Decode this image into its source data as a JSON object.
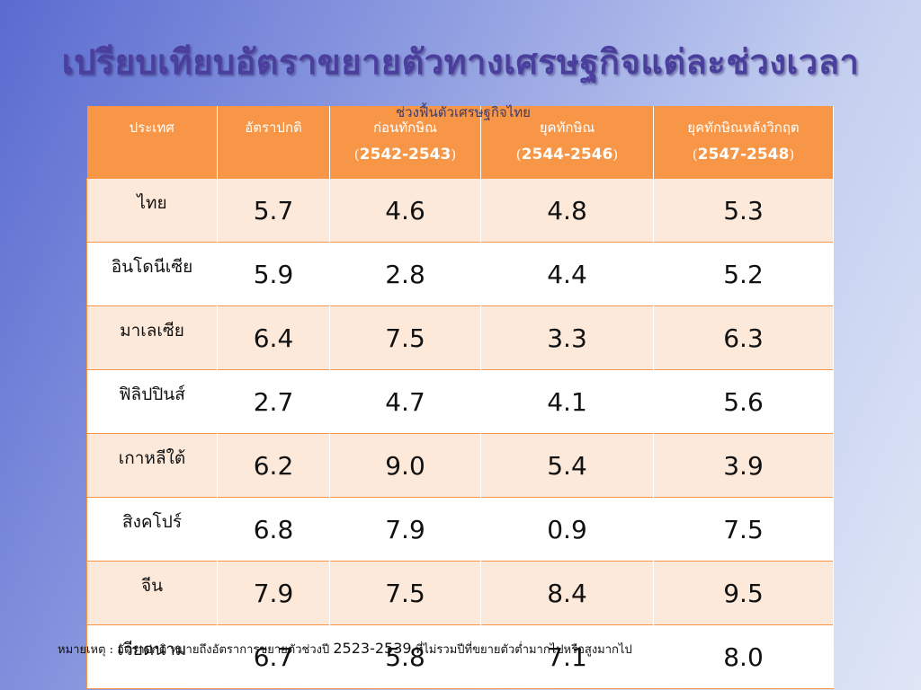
{
  "title": "เปรียบเทียบอัตราขยายตัวทางเศรษฐกิจแต่ละช่วงเวลา",
  "subtitle": "ช่วงฟื้นตัวเศรษฐกิจไทย",
  "table": {
    "headers": [
      {
        "label": "ประเทศ",
        "years": ""
      },
      {
        "label": "อัตราปกติ",
        "years": ""
      },
      {
        "label": "ก่อนทักษิณ",
        "years": "2542-2543"
      },
      {
        "label": "ยุคทักษิณ",
        "years": "2544-2546"
      },
      {
        "label": "ยุคทักษิณหลังวิกฤต",
        "years": "2547-2548"
      }
    ],
    "rows": [
      {
        "country": "ไทย",
        "values": [
          "5.7",
          "4.6",
          "4.8",
          "5.3"
        ]
      },
      {
        "country": "อินโดนีเซีย",
        "values": [
          "5.9",
          "2.8",
          "4.4",
          "5.2"
        ]
      },
      {
        "country": "มาเลเซีย",
        "values": [
          "6.4",
          "7.5",
          "3.3",
          "6.3"
        ]
      },
      {
        "country": "ฟิลิปปินส์",
        "values": [
          "2.7",
          "4.7",
          "4.1",
          "5.6"
        ]
      },
      {
        "country": "เกาหลีใต้",
        "values": [
          "6.2",
          "9.0",
          "5.4",
          "3.9"
        ]
      },
      {
        "country": "สิงคโปร์",
        "values": [
          "6.8",
          "7.9",
          "0.9",
          "7.5"
        ]
      },
      {
        "country": "จีน",
        "values": [
          "7.9",
          "7.5",
          "8.4",
          "9.5"
        ]
      },
      {
        "country": "เวียดนาม",
        "values": [
          "6.7",
          "5.8",
          "7.1",
          "8.0"
        ]
      }
    ]
  },
  "note": {
    "prefix": "หมายเหตุ : อัตราปกติ หมายถึงอัตราการขยายตัวช่วงปี",
    "years": "2523-2539",
    "suffix": "ที่ไม่รวมปีที่ขยายตัวต่ำมากไปหรือสูงมากไป"
  },
  "colors": {
    "header": "#f79646",
    "band": "#fde9d9",
    "title": "#4b3f9e"
  }
}
